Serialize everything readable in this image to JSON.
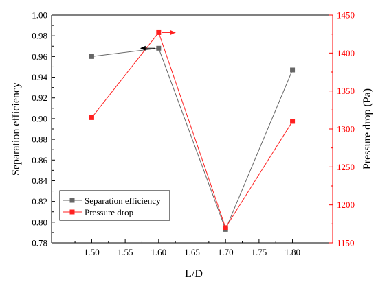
{
  "chart_data": {
    "type": "line",
    "xlabel": "L/D",
    "ylabel_left": "Separation efficiency",
    "ylabel_right": "Pressure drop (Pa)",
    "x": [
      1.5,
      1.6,
      1.7,
      1.8
    ],
    "x_ticks": [
      "1.50",
      "1.55",
      "1.60",
      "1.65",
      "1.70",
      "1.75",
      "1.80"
    ],
    "xlim": [
      1.44,
      1.86
    ],
    "ylim_left": [
      0.78,
      1.0
    ],
    "ylim_right": [
      1150,
      1450
    ],
    "left_ticks": [
      "0.78",
      "0.80",
      "0.82",
      "0.84",
      "0.86",
      "0.88",
      "0.90",
      "0.92",
      "0.94",
      "0.96",
      "0.98",
      "1.00"
    ],
    "right_ticks": [
      "1150",
      "1200",
      "1250",
      "1300",
      "1350",
      "1400",
      "1450"
    ],
    "series": [
      {
        "name": "Separation efficiency",
        "axis": "left",
        "color": "#666666",
        "marker": "square",
        "values": [
          0.96,
          0.968,
          0.793,
          0.947
        ]
      },
      {
        "name": "Pressure drop",
        "axis": "right",
        "color": "#ff2020",
        "marker": "square",
        "values": [
          1315,
          1427,
          1170,
          1310
        ]
      }
    ],
    "left_axis_color": "#000000",
    "right_axis_color": "#ff0000",
    "legend_position": "bottom-left",
    "grid": false
  }
}
